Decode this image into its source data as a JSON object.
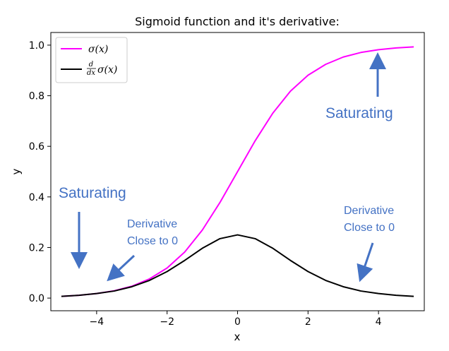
{
  "chart_data": {
    "type": "line",
    "title": "Sigmoid function and it's derivative:",
    "xlabel": "x",
    "ylabel": "y",
    "xlim": [
      -5.3,
      5.3
    ],
    "ylim": [
      -0.05,
      1.05
    ],
    "xticks": [
      -4,
      -2,
      0,
      2,
      4
    ],
    "xtick_labels": [
      "−4",
      "−2",
      "0",
      "2",
      "4"
    ],
    "yticks": [
      0.0,
      0.2,
      0.4,
      0.6,
      0.8,
      1.0
    ],
    "ytick_labels": [
      "0.0",
      "0.2",
      "0.4",
      "0.6",
      "0.8",
      "1.0"
    ],
    "grid": false,
    "legend_position": "top-left",
    "x": [
      -5,
      -4.5,
      -4,
      -3.5,
      -3,
      -2.5,
      -2,
      -1.5,
      -1,
      -0.5,
      0,
      0.5,
      1,
      1.5,
      2,
      2.5,
      3,
      3.5,
      4,
      4.5,
      5
    ],
    "series": [
      {
        "name": "σ(x)",
        "color": "#ff00ff",
        "values": [
          0.007,
          0.011,
          0.018,
          0.029,
          0.047,
          0.076,
          0.119,
          0.182,
          0.269,
          0.378,
          0.5,
          0.622,
          0.731,
          0.818,
          0.881,
          0.924,
          0.953,
          0.971,
          0.982,
          0.989,
          0.993
        ]
      },
      {
        "name": "d/dx σ(x)",
        "color": "#000000",
        "values": [
          0.007,
          0.011,
          0.018,
          0.028,
          0.045,
          0.07,
          0.105,
          0.149,
          0.197,
          0.235,
          0.25,
          0.235,
          0.197,
          0.149,
          0.105,
          0.07,
          0.045,
          0.028,
          0.018,
          0.011,
          0.007
        ]
      }
    ],
    "legend": {
      "sigma_label": "σ(x)",
      "deriv_frac_num": "d",
      "deriv_frac_den": "dx",
      "deriv_label": "σ(x)"
    },
    "annotations": {
      "color": "#4472c4",
      "saturating_left": "Saturating",
      "saturating_right": "Saturating",
      "derivative_left_line1": "Derivative",
      "derivative_left_line2": "Close to 0",
      "derivative_right_line1": "Derivative",
      "derivative_right_line2": "Close to 0"
    }
  }
}
